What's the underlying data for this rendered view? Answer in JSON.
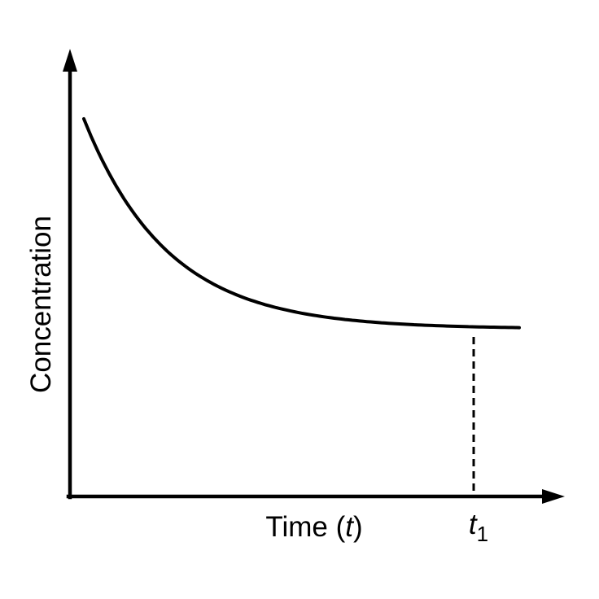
{
  "figure": {
    "background_color": "#ffffff",
    "line_color": "#000000",
    "y_axis_label": "Concentration",
    "x_axis_label": {
      "prefix": "Time (",
      "variable": "t",
      "suffix": ")"
    },
    "t1_marker_label": {
      "variable": "t",
      "subscript": "1"
    }
  },
  "chart_data": {
    "type": "line",
    "title": "",
    "xlabel": "Time (t)",
    "ylabel": "Concentration",
    "axes_numeric": false,
    "tick_labels": [],
    "grid": false,
    "legend": null,
    "description": "Qualitative curve: concentration decays exponentially over time and levels off to a constant plateau, reached at time t1 which is marked on the time axis by a dashed vertical line.",
    "series": [
      {
        "name": "concentration",
        "model": "c(t) = plateau + (c0 - plateau) * exp(-k * t)",
        "c0_relative": 1.0,
        "plateau_relative": 0.444,
        "decay_rate_k_per_t1": 4.65,
        "t_domain_t1_units": [
          0,
          1.117
        ],
        "sample_points_t1_units": [
          {
            "t": 0.0,
            "c": 1.0
          },
          {
            "t": 0.1,
            "c": 0.793
          },
          {
            "t": 0.2,
            "c": 0.664
          },
          {
            "t": 0.3,
            "c": 0.582
          },
          {
            "t": 0.4,
            "c": 0.531
          },
          {
            "t": 0.5,
            "c": 0.498
          },
          {
            "t": 0.6,
            "c": 0.478
          },
          {
            "t": 0.8,
            "c": 0.457
          },
          {
            "t": 1.0,
            "c": 0.449
          },
          {
            "t": 1.117,
            "c": 0.447
          }
        ]
      }
    ],
    "annotations": [
      {
        "type": "dashed-vertical-line",
        "label": "t1",
        "t_t1_units": 1.0
      }
    ]
  }
}
